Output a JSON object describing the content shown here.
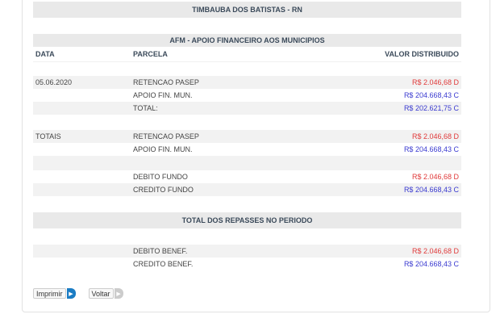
{
  "municipio": "TIMBAUBA DOS BATISTAS - RN",
  "section_title": "AFM - APOIO FINANCEIRO AOS MUNICIPIOS",
  "columns": {
    "data": "DATA",
    "parcela": "PARCELA",
    "valor": "VALOR DISTRIBUIDO"
  },
  "rows": [
    {
      "data": "05.06.2020",
      "parcela": "RETENCAO PASEP",
      "valor": "R$ 2.046,68 D"
    },
    {
      "data": "",
      "parcela": "APOIO FIN. MUN.",
      "valor": "R$ 204.668,43 C"
    },
    {
      "data": "",
      "parcela": "TOTAL:",
      "valor": "R$ 202.621,75 C"
    }
  ],
  "totais": [
    {
      "data": "TOTAIS",
      "parcela": "RETENCAO PASEP",
      "valor": "R$ 2.046,68 D"
    },
    {
      "data": "",
      "parcela": "APOIO FIN. MUN.",
      "valor": "R$ 204.668,43 C"
    }
  ],
  "fundo": [
    {
      "parcela": "DEBITO FUNDO",
      "valor": "R$ 2.046,68 D"
    },
    {
      "parcela": "CREDITO FUNDO",
      "valor": "R$ 204.668,43 C"
    }
  ],
  "repasses_title": "TOTAL DOS REPASSES NO PERIODO",
  "benef": [
    {
      "parcela": "DEBITO BENEF.",
      "valor": "R$ 2.046,68 D"
    },
    {
      "parcela": "CREDITO BENEF.",
      "valor": "R$ 204.668,43 C"
    }
  ],
  "buttons": {
    "print": "Imprimir",
    "back": "Voltar"
  },
  "colors": {
    "debit": "#e03a3a",
    "credit": "#3a3ad0",
    "print_arrow": "#1a7cc4",
    "back_arrow": "#cccccc"
  }
}
